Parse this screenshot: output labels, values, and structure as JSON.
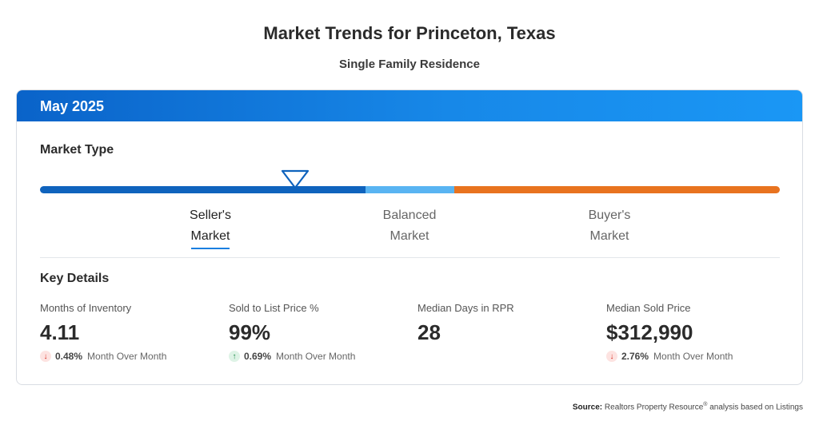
{
  "header": {
    "title": "Market Trends for Princeton, Texas",
    "subtitle": "Single Family Residence"
  },
  "card": {
    "period": "May 2025",
    "market_type": {
      "heading": "Market Type",
      "labels": [
        {
          "line1": "Seller's",
          "line2": "Market",
          "active": true
        },
        {
          "line1": "Balanced",
          "line2": "Market",
          "active": false
        },
        {
          "line1": "Buyer's",
          "line2": "Market",
          "active": false
        }
      ],
      "colors": {
        "seller": "#0f63bd",
        "balanced": "#59b4f2",
        "buyer": "#e8731f"
      }
    },
    "key_details": {
      "heading": "Key Details",
      "stats": [
        {
          "label": "Months of Inventory",
          "value": "4.11",
          "direction": "down",
          "change": "0.48%",
          "period": "Month Over Month"
        },
        {
          "label": "Sold to List Price %",
          "value": "99%",
          "direction": "up",
          "change": "0.69%",
          "period": "Month Over Month"
        },
        {
          "label": "Median Days in RPR",
          "value": "28"
        },
        {
          "label": "Median Sold Price",
          "value": "$312,990",
          "direction": "down",
          "change": "2.76%",
          "period": "Month Over Month"
        }
      ]
    }
  },
  "footer": {
    "source_label": "Source:",
    "source_text_a": "Realtors Property Resource",
    "source_reg": "®",
    "source_text_b": " analysis based on Listings"
  }
}
